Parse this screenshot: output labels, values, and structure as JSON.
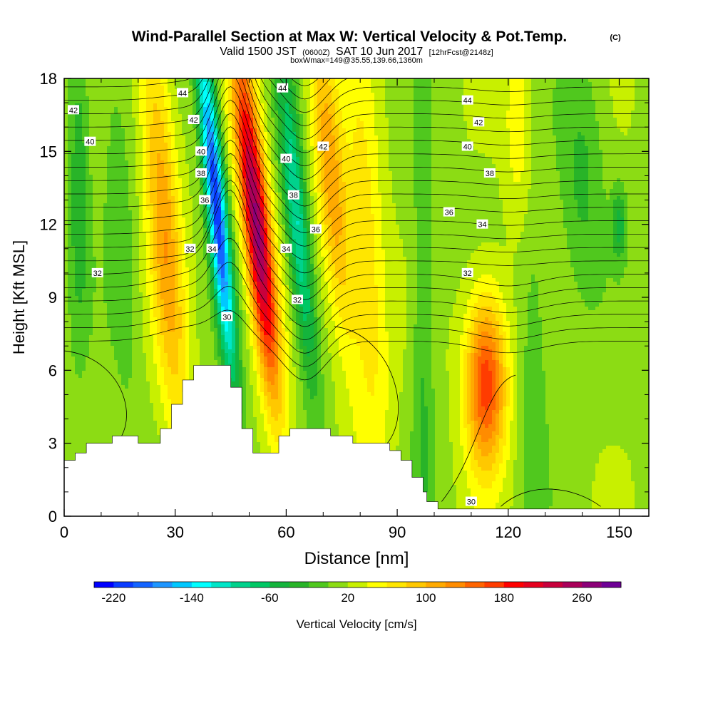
{
  "chart_data": {
    "type": "heatmap",
    "title": "Wind-Parallel Section at Max W: Vertical Velocity & Pot.Temp.",
    "copyright_mark": "(C)",
    "subtitle": {
      "valid_prefix": "Valid 1500 JST",
      "utc": "(0600Z)",
      "date": "SAT 10 Jun 2017",
      "forecast": "[12hrFcst@2148z]"
    },
    "box_info": "boxWmax=149@35.55,139.66,1360m",
    "xlabel": "Distance [nm]",
    "ylabel": "Height [Kft MSL]",
    "xlim": [
      0,
      158
    ],
    "ylim": [
      0,
      18
    ],
    "x_ticks": [
      0,
      30,
      60,
      90,
      120,
      150
    ],
    "x_tick_labels": [
      "0",
      "30",
      "60",
      "90",
      "120",
      "150"
    ],
    "y_ticks": [
      0,
      3,
      6,
      9,
      12,
      15,
      18
    ],
    "y_tick_labels": [
      "0",
      "3",
      "6",
      "9",
      "12",
      "15",
      "18"
    ],
    "colorbar": {
      "label": "Vertical Velocity [cm/s]",
      "min": -240,
      "max": 300,
      "step": 20,
      "tick_values": [
        -220,
        -140,
        -60,
        20,
        100,
        180,
        260
      ],
      "tick_labels": [
        "-220",
        "-140",
        "-60",
        "20",
        "100",
        "180",
        "260"
      ],
      "colors": [
        "#0000ff",
        "#0a3cff",
        "#1464ff",
        "#1e96ff",
        "#00c8ff",
        "#00ffff",
        "#00e6c8",
        "#00d28c",
        "#00c864",
        "#14b43c",
        "#28b428",
        "#50c81e",
        "#8cdc14",
        "#c8f000",
        "#ffff00",
        "#ffe600",
        "#ffc800",
        "#ffaa00",
        "#ff8c00",
        "#ff6400",
        "#ff3c00",
        "#ff0000",
        "#e6001e",
        "#c8003c",
        "#aa005a",
        "#8c0078",
        "#6e0096"
      ]
    },
    "velocity_features": [
      {
        "x": 41,
        "z": 13,
        "sx": 2.6,
        "sz": 7.0,
        "tilt": -0.2,
        "w": -230
      },
      {
        "x": 52,
        "z": 12,
        "sx": 3.6,
        "sz": 7.0,
        "tilt": -0.22,
        "w": 250
      },
      {
        "x": 63,
        "z": 12,
        "sx": 3.0,
        "sz": 6.5,
        "tilt": -0.2,
        "w": -120
      },
      {
        "x": 27,
        "z": 12,
        "sx": 4.5,
        "sz": 9.0,
        "tilt": -0.15,
        "w": 100
      },
      {
        "x": 15,
        "z": 12,
        "sx": 4.0,
        "sz": 8.0,
        "tilt": -0.1,
        "w": -30
      },
      {
        "x": 4,
        "z": 14,
        "sx": 3.0,
        "sz": 7.0,
        "tilt": 0.0,
        "w": -50
      },
      {
        "x": 72,
        "z": 14,
        "sx": 4.0,
        "sz": 7.0,
        "tilt": -0.2,
        "w": 100
      },
      {
        "x": 82,
        "z": 10,
        "sx": 5.0,
        "sz": 9.0,
        "tilt": -0.1,
        "w": 60
      },
      {
        "x": 97,
        "z": 7,
        "sx": 3.0,
        "sz": 10.0,
        "tilt": 0.0,
        "w": -40
      },
      {
        "x": 114,
        "z": 5.5,
        "sx": 5.5,
        "sz": 3.6,
        "tilt": 0.0,
        "w": 160
      },
      {
        "x": 127,
        "z": 6,
        "sx": 4.0,
        "sz": 8.0,
        "tilt": 0.0,
        "w": -30
      },
      {
        "x": 140,
        "z": 14,
        "sx": 6.0,
        "sz": 5.0,
        "tilt": 0.0,
        "w": -40
      },
      {
        "x": 150,
        "z": 12,
        "sx": 2.0,
        "sz": 1.5,
        "tilt": 0.0,
        "w": -60
      },
      {
        "x": 123,
        "z": 16,
        "sx": 4.0,
        "sz": 4.0,
        "tilt": 0.0,
        "w": 40
      }
    ],
    "terrain": {
      "x": [
        0,
        3,
        6,
        13,
        20,
        26,
        29,
        32,
        35,
        38,
        45,
        48,
        51,
        52,
        58,
        61,
        64,
        72,
        77,
        78,
        81,
        88,
        91,
        94,
        97,
        98,
        100,
        101,
        158
      ],
      "kft": [
        2.3,
        2.6,
        3.0,
        3.3,
        3.0,
        3.6,
        4.6,
        5.6,
        6.2,
        6.2,
        5.3,
        3.6,
        2.6,
        2.6,
        3.3,
        3.6,
        3.6,
        3.3,
        3.3,
        3.0,
        3.0,
        2.7,
        2.3,
        1.6,
        1.0,
        0.6,
        0.6,
        0.3,
        0.3
      ]
    },
    "theta_contour_labels": [
      {
        "label": "44",
        "x": 32,
        "z": 17.4
      },
      {
        "label": "44",
        "x": 59,
        "z": 17.6
      },
      {
        "label": "44",
        "x": 109,
        "z": 17.1
      },
      {
        "label": "42",
        "x": 2.5,
        "z": 16.7
      },
      {
        "label": "42",
        "x": 35,
        "z": 16.3
      },
      {
        "label": "42",
        "x": 70,
        "z": 15.2
      },
      {
        "label": "42",
        "x": 112,
        "z": 16.2
      },
      {
        "label": "40",
        "x": 7,
        "z": 15.4
      },
      {
        "label": "40",
        "x": 37,
        "z": 15.0
      },
      {
        "label": "40",
        "x": 60,
        "z": 14.7
      },
      {
        "label": "40",
        "x": 109,
        "z": 15.2
      },
      {
        "label": "38",
        "x": 37,
        "z": 14.1
      },
      {
        "label": "38",
        "x": 62,
        "z": 13.2
      },
      {
        "label": "38",
        "x": 115,
        "z": 14.1
      },
      {
        "label": "36",
        "x": 38,
        "z": 13.0
      },
      {
        "label": "36",
        "x": 68,
        "z": 11.8
      },
      {
        "label": "36",
        "x": 104,
        "z": 12.5
      },
      {
        "label": "34",
        "x": 40,
        "z": 11.0
      },
      {
        "label": "34",
        "x": 60,
        "z": 11.0
      },
      {
        "label": "34",
        "x": 113,
        "z": 12.0
      },
      {
        "label": "32",
        "x": 34,
        "z": 11.0
      },
      {
        "label": "32",
        "x": 9,
        "z": 10.0
      },
      {
        "label": "32",
        "x": 63,
        "z": 8.9
      },
      {
        "label": "32",
        "x": 109,
        "z": 10.0
      },
      {
        "label": "30",
        "x": 44,
        "z": 8.2
      },
      {
        "label": "30",
        "x": 110,
        "z": 0.6
      }
    ]
  }
}
